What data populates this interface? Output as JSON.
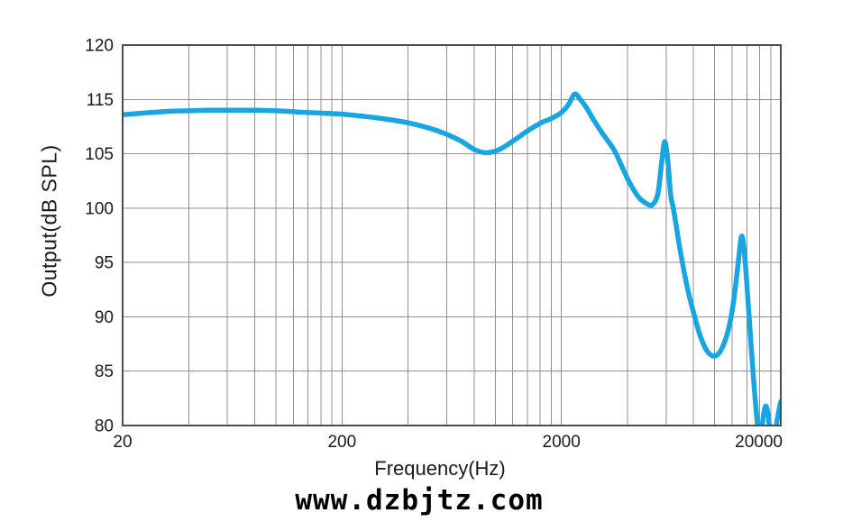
{
  "chart_data": {
    "type": "line",
    "title": "",
    "xlabel": "Frequency(Hz)",
    "ylabel": "Output(dB SPL)",
    "watermark": "www.dzbjtz.com",
    "x_scale": "log",
    "x_range": [
      20,
      20000
    ],
    "x_tick_labels": [
      "20",
      "200",
      "2000",
      "20000"
    ],
    "x_tick_values": [
      20,
      200,
      2000,
      20000
    ],
    "x_gridlines": [
      40,
      60,
      80,
      100,
      120,
      140,
      160,
      180,
      200,
      400,
      600,
      800,
      1000,
      1200,
      1400,
      1600,
      1800,
      2000,
      4000,
      6000,
      8000,
      10000,
      12000,
      14000,
      16000,
      18000
    ],
    "y_tick_labels": [
      "120",
      "115",
      "105",
      "100",
      "95",
      "90",
      "85",
      "80"
    ],
    "y_tick_values": [
      120,
      115,
      105,
      100,
      95,
      90,
      85,
      80
    ],
    "y_axis_note": "ticks evenly spaced as printed; 110 label absent so the 115-105 interval spans 10 dB",
    "grid": true,
    "legend": false,
    "grid_color": "#909090",
    "border_color": "#4d4d4d",
    "line_color": "#18a6e3",
    "line_width": 5.5,
    "series": [
      {
        "name": "output-spl",
        "points": [
          [
            20,
            112.2
          ],
          [
            25,
            112.5
          ],
          [
            32,
            112.8
          ],
          [
            40,
            112.9
          ],
          [
            50,
            113.0
          ],
          [
            63,
            113.0
          ],
          [
            80,
            113.0
          ],
          [
            100,
            112.9
          ],
          [
            125,
            112.7
          ],
          [
            160,
            112.5
          ],
          [
            200,
            112.3
          ],
          [
            250,
            111.9
          ],
          [
            315,
            111.4
          ],
          [
            400,
            110.7
          ],
          [
            500,
            109.7
          ],
          [
            600,
            108.6
          ],
          [
            700,
            107.3
          ],
          [
            800,
            105.8
          ],
          [
            900,
            105.2
          ],
          [
            1000,
            105.5
          ],
          [
            1100,
            106.3
          ],
          [
            1250,
            107.8
          ],
          [
            1400,
            109.2
          ],
          [
            1600,
            110.6
          ],
          [
            1800,
            111.5
          ],
          [
            2000,
            112.6
          ],
          [
            2150,
            114.0
          ],
          [
            2300,
            115.5
          ],
          [
            2450,
            114.9
          ],
          [
            2600,
            113.5
          ],
          [
            2800,
            111.3
          ],
          [
            3000,
            109.4
          ],
          [
            3200,
            107.8
          ],
          [
            3500,
            105.5
          ],
          [
            3800,
            103.7
          ],
          [
            4100,
            102.3
          ],
          [
            4500,
            101.0
          ],
          [
            4900,
            100.4
          ],
          [
            5200,
            100.3
          ],
          [
            5500,
            101.3
          ],
          [
            5700,
            103.8
          ],
          [
            5900,
            107.2
          ],
          [
            6100,
            104.5
          ],
          [
            6300,
            101.2
          ],
          [
            6500,
            99.8
          ],
          [
            7000,
            95.8
          ],
          [
            7500,
            92.7
          ],
          [
            8000,
            90.4
          ],
          [
            8600,
            88.2
          ],
          [
            9200,
            86.9
          ],
          [
            9800,
            86.4
          ],
          [
            10400,
            86.6
          ],
          [
            11000,
            87.5
          ],
          [
            11600,
            89.0
          ],
          [
            12200,
            91.5
          ],
          [
            12800,
            95.0
          ],
          [
            13200,
            97.3
          ],
          [
            13500,
            96.8
          ],
          [
            13900,
            94.0
          ],
          [
            14400,
            89.5
          ],
          [
            15000,
            84.5
          ],
          [
            15500,
            81.0
          ],
          [
            15900,
            78.8
          ],
          [
            16300,
            79.4
          ],
          [
            16700,
            81.0
          ],
          [
            17100,
            81.8
          ],
          [
            17500,
            81.0
          ],
          [
            17900,
            79.3
          ],
          [
            18300,
            78.8
          ],
          [
            18800,
            79.3
          ],
          [
            19300,
            80.6
          ],
          [
            19700,
            81.6
          ],
          [
            20000,
            82.2
          ]
        ]
      }
    ]
  }
}
